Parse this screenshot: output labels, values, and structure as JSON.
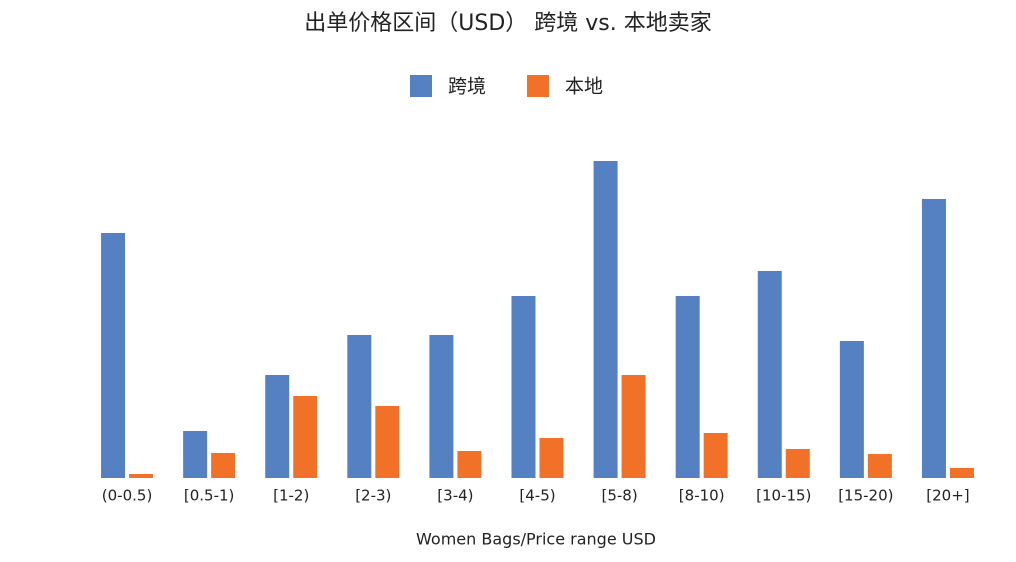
{
  "chart_data": {
    "type": "bar",
    "title": "出单价格区间（USD） 跨境 vs. 本地卖家",
    "x_label": "Women Bags/Price range USD",
    "categories": [
      "(0-0.5)",
      "[0.5-1)",
      "[1-2)",
      "[2-3)",
      "[3-4)",
      "[4-5)",
      "[5-8)",
      "[8-10)",
      "[10-15)",
      "[15-20)",
      "[20+]"
    ],
    "series": [
      {
        "name": "跨境",
        "color": "#5580c2",
        "values": [
          245,
          47,
          103,
          143,
          143,
          182,
          317,
          182,
          207,
          137,
          279
        ]
      },
      {
        "name": "本地",
        "color": "#f07127",
        "values": [
          4,
          25,
          82,
          72,
          27,
          40,
          103,
          45,
          29,
          24,
          10
        ]
      }
    ],
    "ylim": [
      0,
      320
    ]
  }
}
